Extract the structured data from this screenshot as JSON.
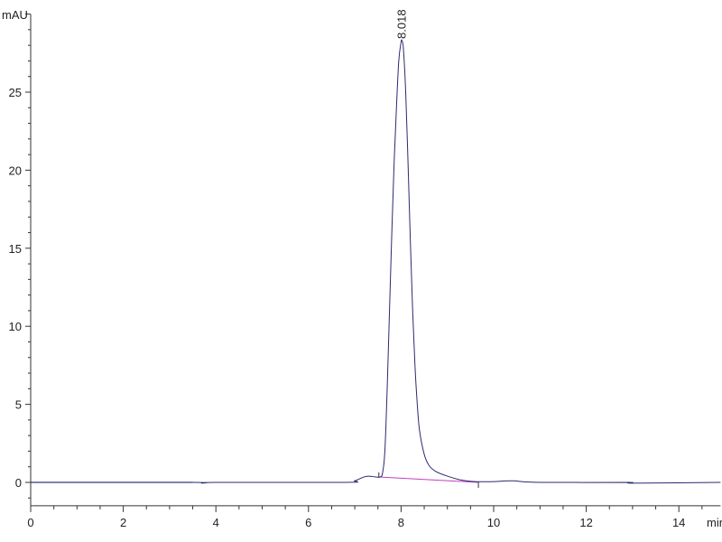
{
  "chart_data": {
    "type": "line",
    "title": "",
    "xlabel": "min",
    "ylabel": "mAU",
    "xlim": [
      0,
      14.9
    ],
    "ylim": [
      -1.5,
      30
    ],
    "x_ticks": [
      0,
      2,
      4,
      6,
      8,
      10,
      12,
      14
    ],
    "y_ticks": [
      0,
      5,
      10,
      15,
      20,
      25
    ],
    "grid": false,
    "colors": {
      "signal": "#2a2a6e",
      "signal_flat": "#5b5bb8",
      "baseline": "#c040c0"
    },
    "series": [
      {
        "points": [
          [
            0,
            0
          ],
          [
            3.5,
            0
          ],
          [
            3.7,
            -0.05
          ],
          [
            4.0,
            0
          ],
          [
            6.8,
            0
          ],
          [
            7.0,
            0.1
          ],
          [
            7.2,
            0.35
          ],
          [
            7.3,
            0.4
          ],
          [
            7.45,
            0.35
          ],
          [
            7.55,
            0.35
          ],
          [
            7.6,
            0.6
          ],
          [
            7.65,
            2
          ],
          [
            7.7,
            6
          ],
          [
            7.75,
            11
          ],
          [
            7.8,
            16
          ],
          [
            7.85,
            20.5
          ],
          [
            7.9,
            24
          ],
          [
            7.95,
            27
          ],
          [
            8.0,
            28.2
          ],
          [
            8.018,
            28.3
          ],
          [
            8.05,
            27.8
          ],
          [
            8.1,
            25
          ],
          [
            8.15,
            20.5
          ],
          [
            8.2,
            15.5
          ],
          [
            8.25,
            11
          ],
          [
            8.3,
            7.5
          ],
          [
            8.35,
            5
          ],
          [
            8.4,
            3.3
          ],
          [
            8.5,
            1.8
          ],
          [
            8.6,
            1.1
          ],
          [
            8.75,
            0.7
          ],
          [
            9.0,
            0.4
          ],
          [
            9.3,
            0.15
          ],
          [
            9.6,
            0.05
          ],
          [
            10.0,
            0.05
          ],
          [
            10.4,
            0.1
          ],
          [
            11,
            0
          ],
          [
            12.9,
            0
          ],
          [
            13.0,
            -0.05
          ],
          [
            14.9,
            0
          ]
        ]
      }
    ],
    "integration_baseline": {
      "start": [
        7.52,
        0.35
      ],
      "end": [
        9.67,
        0.0
      ]
    },
    "peaks": [
      {
        "retention_time": 8.018,
        "label": "8.018",
        "height": 28.3
      }
    ]
  }
}
